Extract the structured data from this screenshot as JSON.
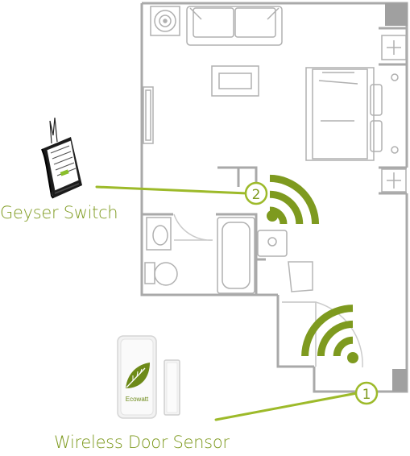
{
  "labels": {
    "geyser_switch": "Geyser Switch",
    "wireless_door_sensor": "Wireless Door Sensor"
  },
  "markers": {
    "marker_1": "1",
    "marker_2": "2"
  },
  "sensor": {
    "brand": "Ecowatt"
  },
  "colors": {
    "accent": "#7e9a1f",
    "wall": "#a8a8a8",
    "line": "#9dba2a"
  },
  "icons": [
    "wifi-signal-icon",
    "leaf-icon",
    "geyser-switch-device",
    "door-sensor-device"
  ]
}
